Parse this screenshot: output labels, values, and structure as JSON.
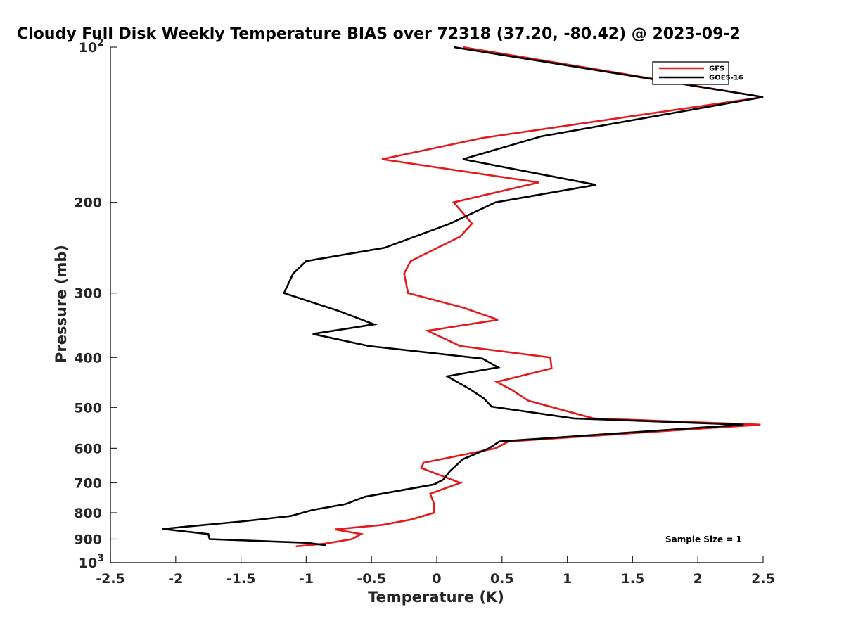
{
  "chart_data": {
    "type": "line",
    "title": "Cloudy Full Disk Weekly Temperature BIAS over 72318 (37.20, -80.42) @ 2023-09-2",
    "xlabel": "Temperature (K)",
    "ylabel": "Pressure (mb)",
    "xlim": [
      -2.5,
      2.5
    ],
    "ylim": [
      100,
      1000
    ],
    "y_scale": "log",
    "y_reversed": true,
    "grid": false,
    "legend_position": "top-right",
    "x_ticks": [
      -2.5,
      -2,
      -1.5,
      -1,
      -0.5,
      0,
      0.5,
      1,
      1.5,
      2,
      2.5
    ],
    "x_tick_labels": [
      "-2.5",
      "-2",
      "-1.5",
      "-1",
      "-0.5",
      "0",
      "0.5",
      "1",
      "1.5",
      "2",
      "2.5"
    ],
    "y_ticks": [
      {
        "value": 100,
        "base": "10",
        "exp": "2"
      },
      {
        "value": 200,
        "label": "200"
      },
      {
        "value": 300,
        "label": "300"
      },
      {
        "value": 400,
        "label": "400"
      },
      {
        "value": 500,
        "label": "500"
      },
      {
        "value": 600,
        "label": "600"
      },
      {
        "value": 700,
        "label": "700"
      },
      {
        "value": 800,
        "label": "800"
      },
      {
        "value": 900,
        "label": "900"
      },
      {
        "value": 1000,
        "base": "10",
        "exp": "3"
      }
    ],
    "series": [
      {
        "name": "GFS",
        "color": "#e41a1c",
        "points": [
          [
            0.2,
            100
          ],
          [
            2.5,
            125
          ],
          [
            0.35,
            150
          ],
          [
            -0.42,
            165
          ],
          [
            0.78,
            183
          ],
          [
            0.13,
            200
          ],
          [
            0.27,
            220
          ],
          [
            0.18,
            233
          ],
          [
            -0.2,
            260
          ],
          [
            -0.25,
            275
          ],
          [
            -0.22,
            300
          ],
          [
            0.2,
            320
          ],
          [
            0.47,
            338
          ],
          [
            -0.07,
            355
          ],
          [
            0.18,
            380
          ],
          [
            0.87,
            400
          ],
          [
            0.88,
            420
          ],
          [
            0.46,
            446
          ],
          [
            0.58,
            463
          ],
          [
            0.7,
            485
          ],
          [
            1.2,
            525
          ],
          [
            2.48,
            540
          ],
          [
            0.55,
            582
          ],
          [
            0.45,
            600
          ],
          [
            -0.1,
            640
          ],
          [
            -0.12,
            655
          ],
          [
            0.18,
            700
          ],
          [
            -0.05,
            735
          ],
          [
            -0.02,
            770
          ],
          [
            -0.02,
            800
          ],
          [
            -0.2,
            825
          ],
          [
            -0.42,
            845
          ],
          [
            -0.78,
            862
          ],
          [
            -0.58,
            880
          ],
          [
            -0.65,
            900
          ],
          [
            -0.85,
            918
          ],
          [
            -1.08,
            930
          ]
        ]
      },
      {
        "name": "GOES-16",
        "color": "#000000",
        "points": [
          [
            0.13,
            100
          ],
          [
            2.5,
            125
          ],
          [
            0.8,
            149
          ],
          [
            0.2,
            165
          ],
          [
            1.22,
            185
          ],
          [
            0.45,
            200
          ],
          [
            0.1,
            220
          ],
          [
            -0.4,
            245
          ],
          [
            -1.0,
            260
          ],
          [
            -1.1,
            275
          ],
          [
            -1.17,
            300
          ],
          [
            -0.75,
            325
          ],
          [
            -0.48,
            345
          ],
          [
            -0.95,
            360
          ],
          [
            -0.52,
            380
          ],
          [
            0.35,
            402
          ],
          [
            0.47,
            418
          ],
          [
            0.08,
            435
          ],
          [
            0.25,
            460
          ],
          [
            0.36,
            480
          ],
          [
            0.42,
            498
          ],
          [
            1.05,
            525
          ],
          [
            2.35,
            540
          ],
          [
            0.48,
            582
          ],
          [
            0.4,
            600
          ],
          [
            0.2,
            630
          ],
          [
            0.1,
            665
          ],
          [
            0.05,
            690
          ],
          [
            -0.02,
            705
          ],
          [
            -0.55,
            745
          ],
          [
            -0.7,
            770
          ],
          [
            -0.95,
            790
          ],
          [
            -1.12,
            812
          ],
          [
            -1.5,
            832
          ],
          [
            -2.1,
            860
          ],
          [
            -1.75,
            880
          ],
          [
            -1.74,
            900
          ],
          [
            -1.0,
            915
          ],
          [
            -0.85,
            925
          ]
        ]
      }
    ],
    "annotations": [
      {
        "text": "Sample Size = 1"
      }
    ]
  }
}
